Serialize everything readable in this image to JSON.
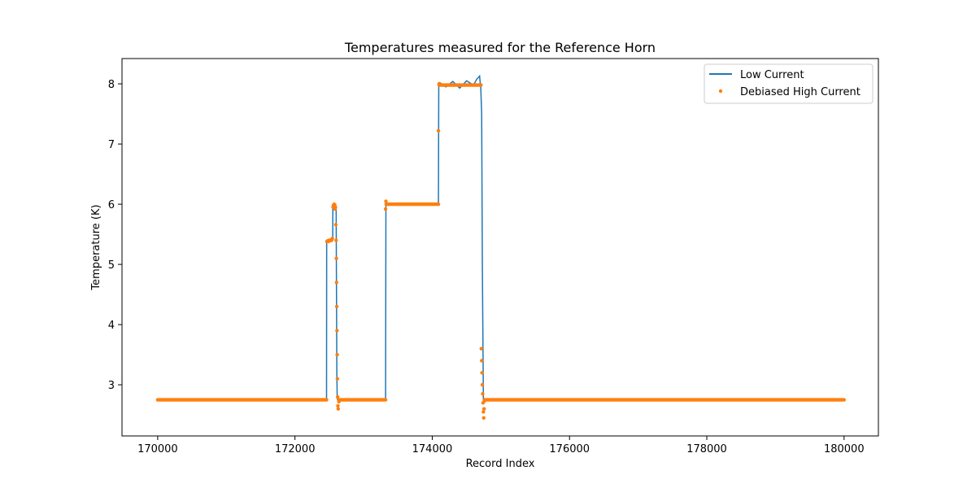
{
  "chart_data": {
    "type": "line",
    "title": "Temperatures measured for the Reference Horn",
    "xlabel": "Record Index",
    "ylabel": "Temperature (K)",
    "xlim": [
      169480,
      180500
    ],
    "ylim": [
      2.15,
      8.42
    ],
    "xticks": [
      170000,
      172000,
      174000,
      176000,
      178000,
      180000
    ],
    "yticks": [
      3,
      4,
      5,
      6,
      7,
      8
    ],
    "grid": false,
    "legend_position": "top-right",
    "series": [
      {
        "name": "Low Current",
        "style": "line",
        "color": "#1f77b4",
        "x": [
          170000,
          172460,
          172462,
          172465,
          172530,
          172550,
          172552,
          172555,
          172585,
          172600,
          172605,
          172610,
          172615,
          172620,
          172622,
          173320,
          173325,
          173330,
          173600,
          173800,
          173950,
          174090,
          174095,
          174110,
          174200,
          174300,
          174400,
          174500,
          174600,
          174650,
          174690,
          174700,
          174705,
          174720,
          174730,
          174740,
          174745,
          174760,
          174800,
          175500,
          176500,
          178000,
          180000
        ],
        "y": [
          2.75,
          2.75,
          5.38,
          5.39,
          5.41,
          5.42,
          5.97,
          5.98,
          5.99,
          5.96,
          4.5,
          3.2,
          2.8,
          2.75,
          2.75,
          2.75,
          6.0,
          6.02,
          6.0,
          6.01,
          6.0,
          6.01,
          8.0,
          8.02,
          7.95,
          8.04,
          7.93,
          8.05,
          7.98,
          8.08,
          8.13,
          8.0,
          8.0,
          7.5,
          5.0,
          3.5,
          2.75,
          2.75,
          2.75,
          2.75,
          2.75,
          2.75,
          2.75
        ]
      },
      {
        "name": "Debiased High Current",
        "style": "scatter",
        "color": "#ff7f0e",
        "x": [
          172465,
          172475,
          172485,
          172495,
          172505,
          172515,
          172525,
          172535,
          172545,
          172555,
          172560,
          172565,
          172570,
          172575,
          172580,
          172585,
          172590,
          172595,
          172600,
          172603,
          172606,
          172609,
          172612,
          172615,
          172618,
          172621,
          172625,
          172630,
          172640,
          173320,
          173325,
          173330,
          174090,
          174100,
          174715,
          174720,
          174725,
          174730,
          174735,
          174740,
          174745,
          174750,
          174755,
          174760
        ],
        "y": [
          5.38,
          5.39,
          5.38,
          5.4,
          5.39,
          5.4,
          5.41,
          5.4,
          5.43,
          5.95,
          5.98,
          5.97,
          6.0,
          5.96,
          5.99,
          5.92,
          5.95,
          5.66,
          5.4,
          5.1,
          4.7,
          4.3,
          3.9,
          3.5,
          3.1,
          2.8,
          2.65,
          2.6,
          2.72,
          5.92,
          6.05,
          6.0,
          7.22,
          8.0,
          3.6,
          3.4,
          3.2,
          3.0,
          2.85,
          2.7,
          2.55,
          2.45,
          2.6,
          2.73
        ],
        "bands": [
          {
            "x_start": 170000,
            "x_end": 172460,
            "y": 2.75
          },
          {
            "x_start": 172640,
            "x_end": 173320,
            "y": 2.75
          },
          {
            "x_start": 173330,
            "x_end": 174090,
            "y": 6.0
          },
          {
            "x_start": 174100,
            "x_end": 174710,
            "y": 7.98
          },
          {
            "x_start": 174760,
            "x_end": 180000,
            "y": 2.75
          }
        ]
      }
    ]
  }
}
